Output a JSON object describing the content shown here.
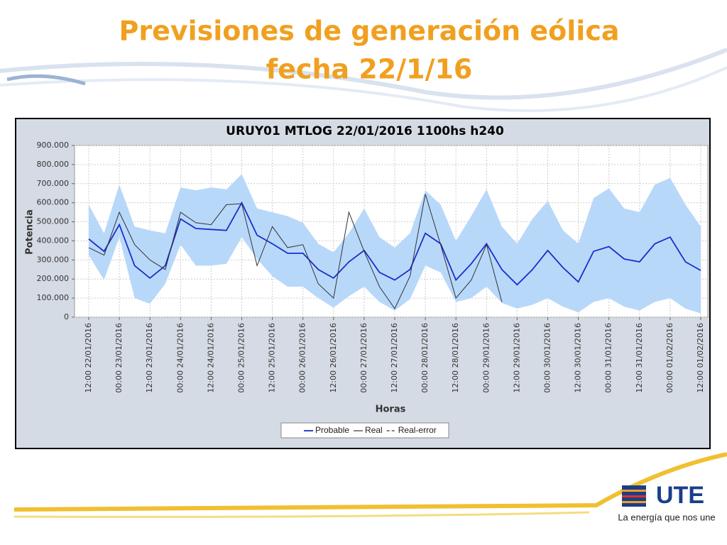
{
  "slide": {
    "title_line1": "Previsiones de generación eólica",
    "title_line2": "fecha 22/1/16",
    "logo_text": "UTE",
    "slogan": "La energía que nos une"
  },
  "chart_data": {
    "type": "line",
    "title": "URUY01  MTLOG  22/01/2016  1100hs   h240",
    "x_label": "Horas",
    "y_label": "Potencia",
    "grid": true,
    "legend": "bottom",
    "categories": [
      "12:00 22/01/2016",
      null,
      "00:00 23/01/2016",
      null,
      "12:00 23/01/2016",
      null,
      "00:00 24/01/2016",
      null,
      "12:00 24/01/2016",
      null,
      "00:00 25/01/2016",
      null,
      "12:00 25/01/2016",
      null,
      "00:00 26/01/2016",
      null,
      "12:00 26/01/2016",
      null,
      "00:00 27/01/2016",
      null,
      "12:00 27/01/2016",
      null,
      "00:00 28/01/2016",
      null,
      "12:00 28/01/2016",
      null,
      "00:00 29/01/2016",
      null,
      "12:00 29/01/2016",
      null,
      "00:00 30/01/2016",
      null,
      "12:00 30/01/2016",
      null,
      "00:00 31/01/2016",
      null,
      "12:00 31/01/2016",
      null,
      "00:00 01/02/2016",
      null,
      "12:00 01/02/2016"
    ],
    "ylim": [
      0,
      900000
    ],
    "yticks": [
      0,
      {
        "value": 100000,
        "label": "100.000"
      },
      {
        "value": 200000,
        "label": "200.000"
      },
      {
        "value": 300000,
        "label": "300.000"
      },
      {
        "value": 400000,
        "label": "400.000"
      },
      {
        "value": 500000,
        "label": "500.000"
      },
      {
        "value": 600000,
        "label": "600.000"
      },
      {
        "value": 700000,
        "label": "700.000"
      },
      {
        "value": 800000,
        "label": "800.000"
      },
      {
        "value": 900000,
        "label": "900.000"
      }
    ],
    "band": {
      "color": "#b8d8fa",
      "upper": [
        590000,
        440000,
        695000,
        475000,
        455000,
        440000,
        680000,
        665000,
        680000,
        670000,
        750000,
        570000,
        550000,
        530000,
        495000,
        385000,
        340000,
        440000,
        570000,
        420000,
        365000,
        440000,
        665000,
        590000,
        400000,
        530000,
        670000,
        475000,
        385000,
        515000,
        610000,
        455000,
        385000,
        625000,
        675000,
        570000,
        550000,
        695000,
        730000,
        590000,
        475000
      ],
      "lower": [
        325000,
        195000,
        420000,
        100000,
        70000,
        175000,
        380000,
        270000,
        270000,
        280000,
        420000,
        305000,
        215000,
        160000,
        160000,
        100000,
        50000,
        110000,
        160000,
        80000,
        35000,
        95000,
        270000,
        235000,
        80000,
        100000,
        160000,
        75000,
        45000,
        65000,
        100000,
        55000,
        25000,
        80000,
        100000,
        55000,
        35000,
        80000,
        100000,
        45000,
        20000
      ]
    },
    "series": [
      {
        "name": "Probable",
        "color": "#1a2fc8",
        "style": "solid",
        "values": [
          410000,
          345000,
          485000,
          270000,
          205000,
          270000,
          515000,
          465000,
          460000,
          455000,
          600000,
          430000,
          385000,
          335000,
          335000,
          250000,
          205000,
          290000,
          350000,
          235000,
          195000,
          250000,
          440000,
          385000,
          195000,
          280000,
          385000,
          250000,
          170000,
          250000,
          350000,
          260000,
          185000,
          345000,
          370000,
          305000,
          290000,
          385000,
          420000,
          290000,
          245000
        ]
      },
      {
        "name": "Real",
        "color": "#333333",
        "style": "solid",
        "values": [
          365000,
          325000,
          550000,
          380000,
          300000,
          250000,
          550000,
          495000,
          485000,
          590000,
          595000,
          270000,
          475000,
          365000,
          380000,
          175000,
          100000,
          550000,
          345000,
          160000,
          45000,
          215000,
          645000,
          380000,
          100000,
          195000,
          380000,
          80000,
          null,
          null,
          null,
          null,
          null,
          null,
          null,
          null,
          null,
          null,
          null,
          null,
          null
        ]
      },
      {
        "name": "Real-error",
        "color": "#333333",
        "style": "dashed",
        "values": [
          null,
          null,
          null,
          null,
          null,
          null,
          null,
          null,
          null,
          null,
          null,
          null,
          null,
          null,
          null,
          null,
          null,
          null,
          null,
          null,
          null,
          null,
          null,
          null,
          null,
          null,
          null,
          null,
          null,
          null,
          null,
          null,
          null,
          null,
          null,
          null,
          null,
          null,
          null,
          null,
          null
        ]
      }
    ]
  }
}
